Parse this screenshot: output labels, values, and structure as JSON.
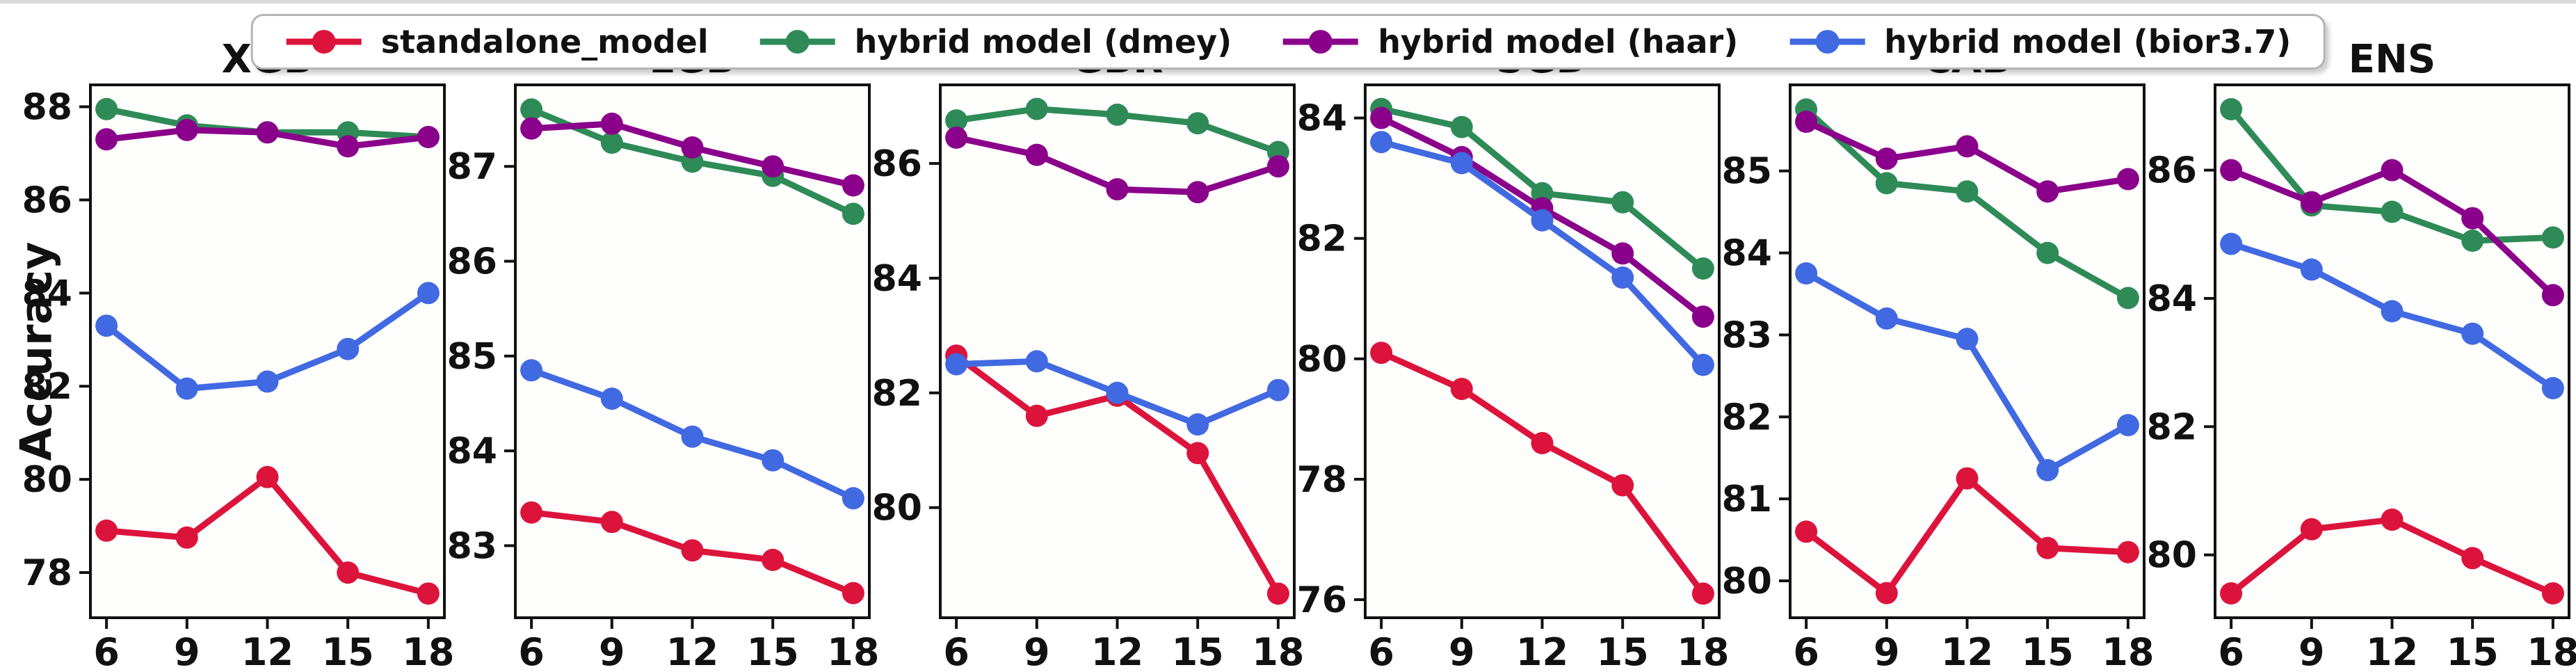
{
  "figure": {
    "ylabel": "Accuracy"
  },
  "legend": {
    "position": "top-center",
    "items": [
      {
        "label": "standalone_model",
        "color": "#DC143C"
      },
      {
        "label": "hybrid model (dmey)",
        "color": "#2E8B57"
      },
      {
        "label": "hybrid model (haar)",
        "color": "#8B008B"
      },
      {
        "label": "hybrid model (bior3.7)",
        "color": "#4169E1"
      }
    ]
  },
  "chart_data": {
    "type": "line",
    "x": [
      6,
      9,
      12,
      15,
      18
    ],
    "xlim": [
      5.4,
      18.6
    ],
    "xlabel": "",
    "ylabel": "Accuracy",
    "grid": false,
    "legend_position": "top-center",
    "marker": "circle",
    "subplots": [
      {
        "title": "XGB",
        "ylim": [
          77.03,
          88.47
        ],
        "yticks": [
          78,
          80,
          82,
          84,
          86,
          88
        ],
        "series": [
          {
            "name": "standalone_model",
            "values": [
              78.9,
              78.75,
              80.05,
              78.0,
              77.55
            ]
          },
          {
            "name": "hybrid model (dmey)",
            "values": [
              87.95,
              87.6,
              87.45,
              87.45,
              87.35
            ]
          },
          {
            "name": "hybrid model (haar)",
            "values": [
              87.3,
              87.5,
              87.45,
              87.15,
              87.35
            ]
          },
          {
            "name": "hybrid model (bior3.7)",
            "values": [
              83.3,
              81.95,
              82.1,
              82.8,
              84.0
            ]
          }
        ]
      },
      {
        "title": "LGB",
        "ylim": [
          82.24,
          87.86
        ],
        "yticks": [
          83,
          84,
          85,
          86,
          87
        ],
        "series": [
          {
            "name": "standalone_model",
            "values": [
              83.35,
              83.25,
              82.95,
              82.85,
              82.5
            ]
          },
          {
            "name": "hybrid model (dmey)",
            "values": [
              87.6,
              87.25,
              87.05,
              86.9,
              86.5
            ]
          },
          {
            "name": "hybrid model (haar)",
            "values": [
              87.4,
              87.45,
              87.2,
              87.0,
              86.8
            ]
          },
          {
            "name": "hybrid model (bior3.7)",
            "values": [
              84.85,
              84.55,
              84.15,
              83.9,
              83.5
            ]
          }
        ]
      },
      {
        "title": "GBR",
        "ylim": [
          78.08,
          87.37
        ],
        "yticks": [
          80,
          82,
          84,
          86
        ],
        "series": [
          {
            "name": "standalone_model",
            "values": [
              82.65,
              81.6,
              81.95,
              80.95,
              78.5
            ]
          },
          {
            "name": "hybrid model (dmey)",
            "values": [
              86.75,
              86.95,
              86.85,
              86.7,
              86.2
            ]
          },
          {
            "name": "hybrid model (haar)",
            "values": [
              86.45,
              86.15,
              85.55,
              85.5,
              85.95
            ]
          },
          {
            "name": "hybrid model (bior3.7)",
            "values": [
              82.5,
              82.55,
              82.0,
              81.45,
              82.05
            ]
          }
        ]
      },
      {
        "title": "SGD",
        "ylim": [
          75.7,
          84.55
        ],
        "yticks": [
          76,
          78,
          80,
          82,
          84
        ],
        "series": [
          {
            "name": "standalone_model",
            "values": [
              80.1,
              79.5,
              78.6,
              77.9,
              76.1
            ]
          },
          {
            "name": "hybrid model (dmey)",
            "values": [
              84.15,
              83.85,
              82.75,
              82.6,
              81.5
            ]
          },
          {
            "name": "hybrid model (haar)",
            "values": [
              84.0,
              83.35,
              82.5,
              81.75,
              80.7
            ]
          },
          {
            "name": "hybrid model (bior3.7)",
            "values": [
              83.6,
              83.25,
              82.3,
              81.35,
              79.9
            ]
          }
        ]
      },
      {
        "title": "CAB",
        "ylim": [
          79.55,
          86.05
        ],
        "yticks": [
          80,
          81,
          82,
          83,
          84,
          85
        ],
        "series": [
          {
            "name": "standalone_model",
            "values": [
              80.6,
              79.85,
              81.25,
              80.4,
              80.35
            ]
          },
          {
            "name": "hybrid model (dmey)",
            "values": [
              85.75,
              84.85,
              84.75,
              84.0,
              83.45
            ]
          },
          {
            "name": "hybrid model (haar)",
            "values": [
              85.6,
              85.15,
              85.3,
              84.75,
              84.9
            ]
          },
          {
            "name": "hybrid model (bior3.7)",
            "values": [
              83.75,
              83.2,
              82.95,
              81.35,
              81.9
            ]
          }
        ]
      },
      {
        "title": "ENS",
        "ylim": [
          79.02,
          87.33
        ],
        "yticks": [
          80,
          82,
          84,
          86
        ],
        "series": [
          {
            "name": "standalone_model",
            "values": [
              79.4,
              80.4,
              80.55,
              79.95,
              79.4
            ]
          },
          {
            "name": "hybrid model (dmey)",
            "values": [
              86.95,
              85.45,
              85.35,
              84.9,
              84.95
            ]
          },
          {
            "name": "hybrid model (haar)",
            "values": [
              86.0,
              85.5,
              86.0,
              85.25,
              84.05
            ]
          },
          {
            "name": "hybrid model (bior3.7)",
            "values": [
              84.85,
              84.45,
              83.8,
              83.45,
              82.6
            ]
          }
        ]
      }
    ]
  }
}
